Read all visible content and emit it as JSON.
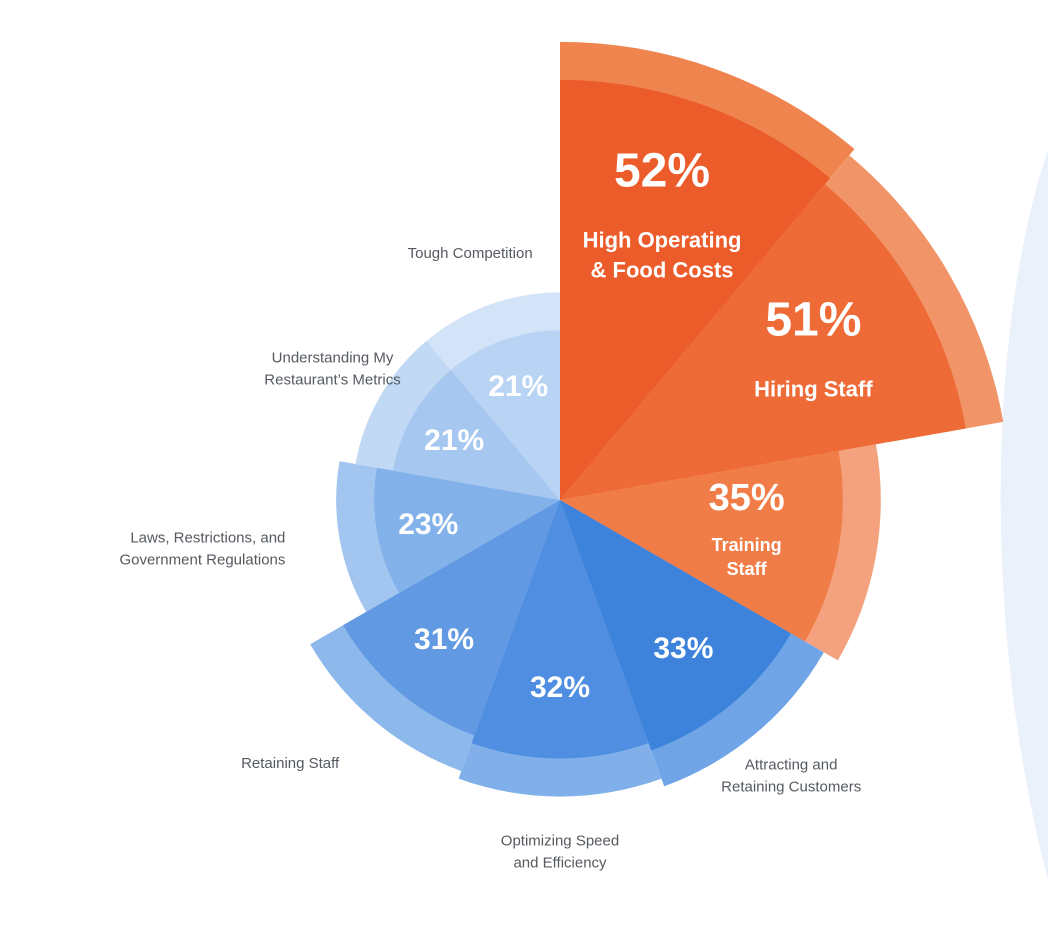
{
  "chart_data": {
    "type": "pie",
    "variant": "polar-area",
    "start": "top",
    "direction": "clockwise",
    "slices": [
      {
        "label": "High Operating & Food Costs",
        "label_lines": [
          "High Operating",
          "& Food Costs"
        ],
        "value": 52,
        "value_label": "52%",
        "color": "#ec5b2a",
        "ring_color": "#f0844f",
        "label_inside": true
      },
      {
        "label": "Hiring Staff",
        "label_lines": [
          "Hiring Staff"
        ],
        "value": 51,
        "value_label": "51%",
        "color": "#ee6a36",
        "ring_color": "#f19568",
        "label_inside": true
      },
      {
        "label": "Training Staff",
        "label_lines": [
          "Training",
          "Staff"
        ],
        "value": 35,
        "value_label": "35%",
        "color": "#f07c48",
        "ring_color": "#f3a27d",
        "label_inside": true
      },
      {
        "label": "Attracting and Retaining Customers",
        "label_lines": [
          "Attracting and",
          "Retaining Customers"
        ],
        "value": 33,
        "value_label": "33%",
        "color": "#3d83dc",
        "ring_color": "#6fa4e6",
        "label_inside": false
      },
      {
        "label": "Optimizing Speed and Efficiency",
        "label_lines": [
          "Optimizing Speed",
          "and Efficiency"
        ],
        "value": 32,
        "value_label": "32%",
        "color": "#4f8ee0",
        "ring_color": "#80afe9",
        "label_inside": false
      },
      {
        "label": "Retaining Staff",
        "label_lines": [
          "Retaining Staff"
        ],
        "value": 31,
        "value_label": "31%",
        "color": "#6299e3",
        "ring_color": "#8db8ec",
        "label_inside": false
      },
      {
        "label": "Laws, Restrictions, and Government Regulations",
        "label_lines": [
          "Laws, Restrictions, and",
          "Government Regulations"
        ],
        "value": 23,
        "value_label": "23%",
        "color": "#83b1ea",
        "ring_color": "#a3c6f0",
        "label_inside": false
      },
      {
        "label": "Understanding My Restaurant's Metrics",
        "label_lines": [
          "Understanding My",
          "Restaurant’s Metrics"
        ],
        "value": 21,
        "value_label": "21%",
        "color": "#a6c7f0",
        "ring_color": "#c2d9f5",
        "label_inside": false
      },
      {
        "label": "Tough Competition",
        "label_lines": [
          "Tough Competition"
        ],
        "value": 21,
        "value_label": "21%",
        "color": "#b9d3f4",
        "ring_color": "#d3e3f8",
        "label_inside": false
      }
    ]
  }
}
